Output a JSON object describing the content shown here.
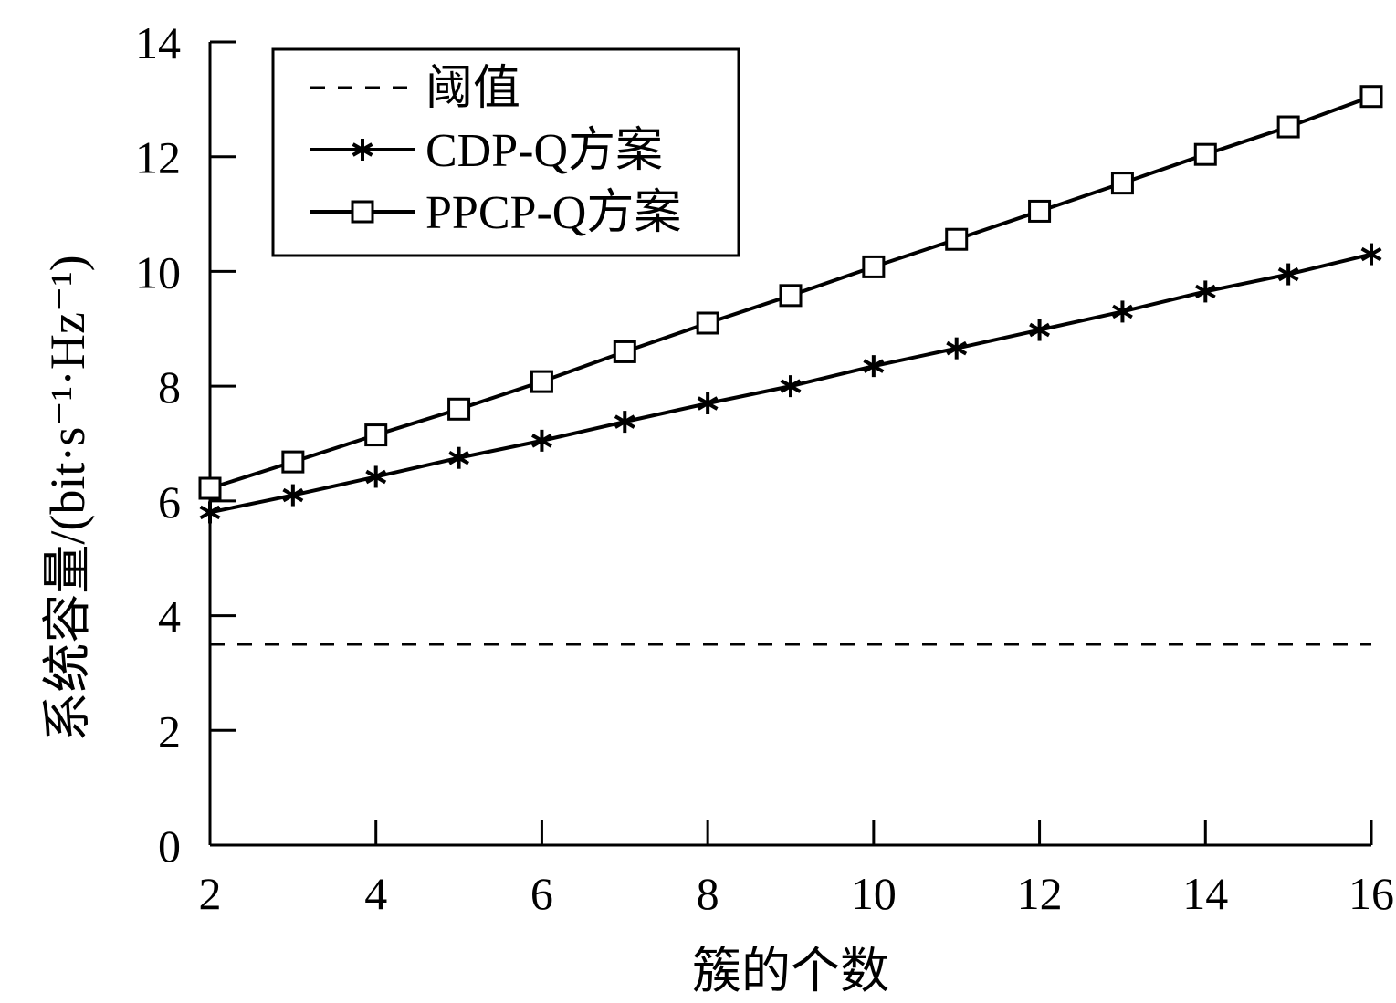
{
  "chart_data": {
    "type": "line",
    "xlabel": "簇的个数",
    "ylabel": "系统容量/(bit·s⁻¹·Hz⁻¹)",
    "xlim": [
      2,
      16
    ],
    "ylim": [
      0,
      14
    ],
    "xticks": [
      2,
      4,
      6,
      8,
      10,
      12,
      14,
      16
    ],
    "yticks": [
      0,
      2,
      4,
      6,
      8,
      10,
      12,
      14
    ],
    "grid": false,
    "legend_position": "top-left",
    "x": [
      2,
      3,
      4,
      5,
      6,
      7,
      8,
      9,
      10,
      11,
      12,
      13,
      14,
      15,
      16
    ],
    "series": [
      {
        "name": "阈值",
        "style": "dashed",
        "marker": "none",
        "values": [
          3.5,
          3.5,
          3.5,
          3.5,
          3.5,
          3.5,
          3.5,
          3.5,
          3.5,
          3.5,
          3.5,
          3.5,
          3.5,
          3.5,
          3.5
        ]
      },
      {
        "name": "CDP-Q方案",
        "style": "solid",
        "marker": "asterisk",
        "values": [
          5.8,
          6.1,
          6.42,
          6.75,
          7.05,
          7.38,
          7.7,
          8.0,
          8.35,
          8.66,
          8.98,
          9.3,
          9.65,
          9.95,
          10.3
        ]
      },
      {
        "name": "PPCP-Q方案",
        "style": "solid",
        "marker": "square",
        "values": [
          6.22,
          6.68,
          7.15,
          7.6,
          8.08,
          8.6,
          9.1,
          9.58,
          10.08,
          10.56,
          11.05,
          11.54,
          12.04,
          12.52,
          13.05
        ]
      }
    ],
    "colors": {
      "line": "#000000",
      "background": "#ffffff"
    }
  }
}
